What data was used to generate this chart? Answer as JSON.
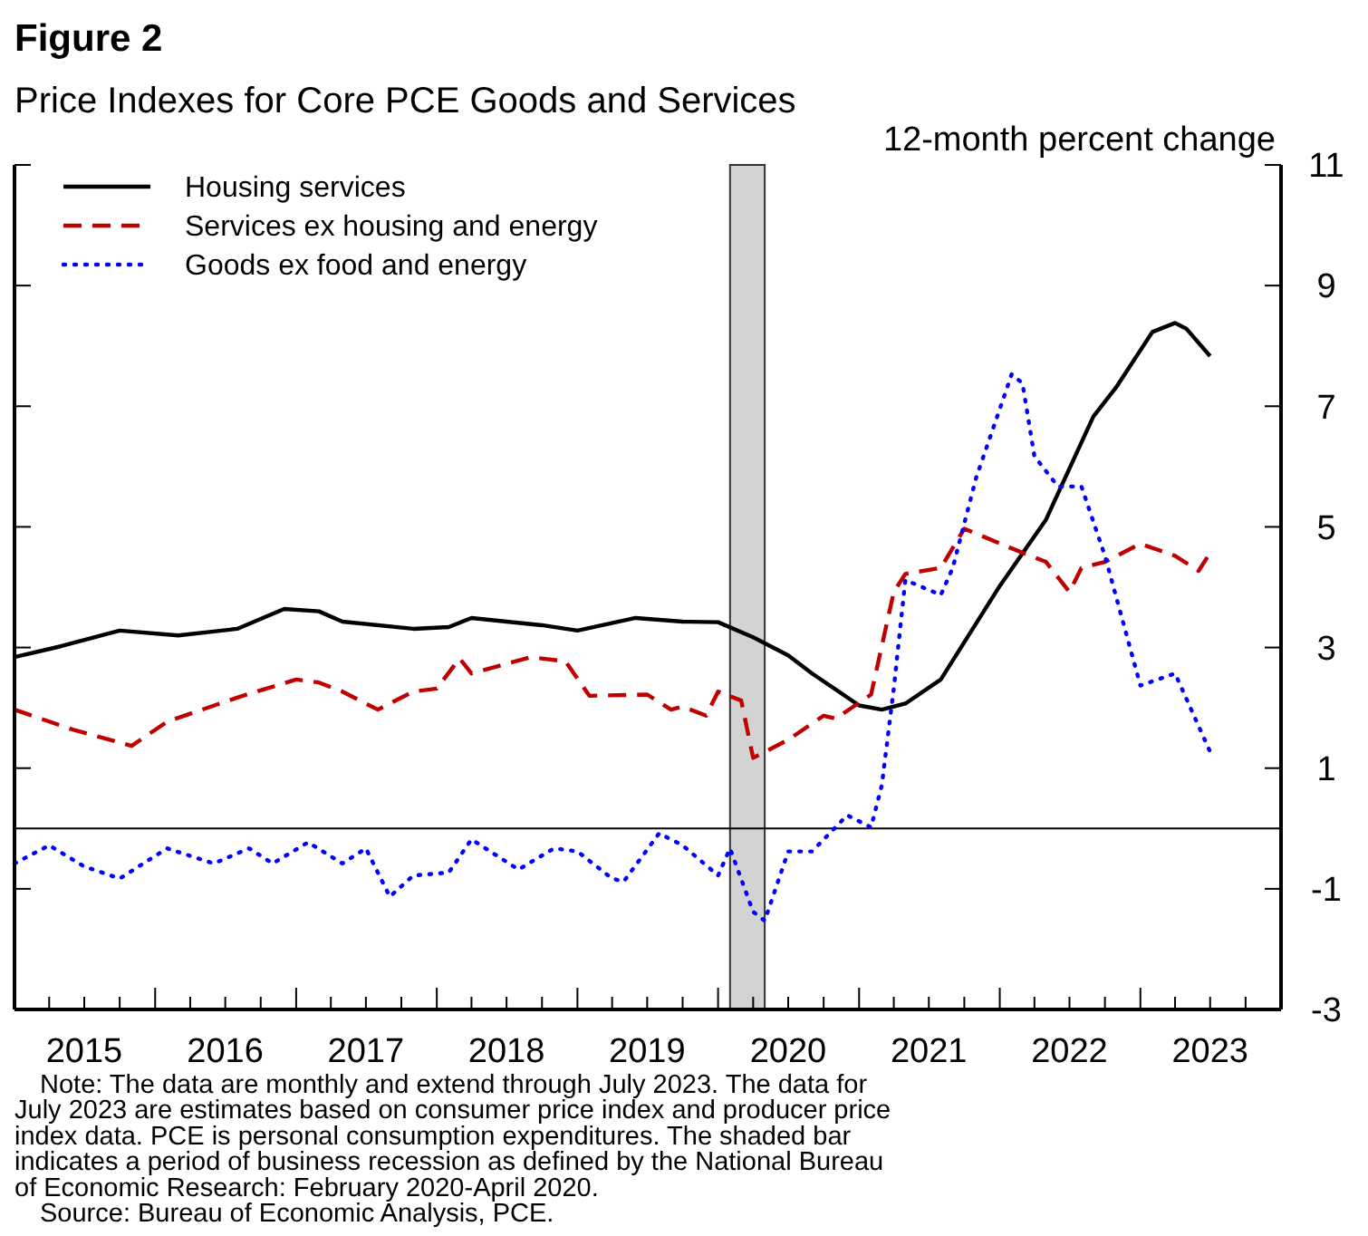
{
  "chart_data": {
    "type": "line",
    "title": "Figure 2",
    "subtitle": "Price Indexes for Core PCE Goods and Services",
    "ylabel": "12-month percent change",
    "xlim": [
      "2015-01",
      "2024-01"
    ],
    "ylim": [
      -3,
      11
    ],
    "yticks": [
      -3,
      -1,
      1,
      3,
      5,
      7,
      9,
      11
    ],
    "xticks": [
      {
        "value": "2015-01",
        "label": null
      },
      {
        "value": "2015-04",
        "label": null
      },
      {
        "value": "2015-07",
        "label": "2015"
      },
      {
        "value": "2015-10",
        "label": null
      },
      {
        "value": "2016-01",
        "label": null
      },
      {
        "value": "2016-04",
        "label": null
      },
      {
        "value": "2016-07",
        "label": "2016"
      },
      {
        "value": "2016-10",
        "label": null
      },
      {
        "value": "2017-01",
        "label": null
      },
      {
        "value": "2017-04",
        "label": null
      },
      {
        "value": "2017-07",
        "label": "2017"
      },
      {
        "value": "2017-10",
        "label": null
      },
      {
        "value": "2018-01",
        "label": null
      },
      {
        "value": "2018-04",
        "label": null
      },
      {
        "value": "2018-07",
        "label": "2018"
      },
      {
        "value": "2018-10",
        "label": null
      },
      {
        "value": "2019-01",
        "label": null
      },
      {
        "value": "2019-04",
        "label": null
      },
      {
        "value": "2019-07",
        "label": "2019"
      },
      {
        "value": "2019-10",
        "label": null
      },
      {
        "value": "2020-01",
        "label": null
      },
      {
        "value": "2020-04",
        "label": null
      },
      {
        "value": "2020-07",
        "label": "2020"
      },
      {
        "value": "2020-10",
        "label": null
      },
      {
        "value": "2021-01",
        "label": null
      },
      {
        "value": "2021-04",
        "label": null
      },
      {
        "value": "2021-07",
        "label": "2021"
      },
      {
        "value": "2021-10",
        "label": null
      },
      {
        "value": "2022-01",
        "label": null
      },
      {
        "value": "2022-04",
        "label": null
      },
      {
        "value": "2022-07",
        "label": "2022"
      },
      {
        "value": "2022-10",
        "label": null
      },
      {
        "value": "2023-01",
        "label": null
      },
      {
        "value": "2023-04",
        "label": null
      },
      {
        "value": "2023-07",
        "label": "2023"
      },
      {
        "value": "2023-10",
        "label": null
      },
      {
        "value": "2024-01",
        "label": null
      }
    ],
    "grid": false,
    "legend": "top left",
    "bands": [
      {
        "axis": "x",
        "from": "2020-02",
        "to": "2020-05",
        "color": "#d3d3d3"
      }
    ],
    "ref_lines": [
      {
        "axis": "y",
        "value": 0,
        "color": "#000000"
      }
    ],
    "series": [
      {
        "name": "Housing services",
        "color": "#000000",
        "line_style": "solid",
        "x": [
          "2015-01",
          "2015-05",
          "2015-10",
          "2016-03",
          "2016-08",
          "2016-12",
          "2017-03",
          "2017-05",
          "2017-11",
          "2018-02",
          "2018-04",
          "2018-10",
          "2019-01",
          "2019-06",
          "2019-10",
          "2020-01",
          "2020-04",
          "2020-07",
          "2020-09",
          "2021-01",
          "2021-03",
          "2021-05",
          "2021-08",
          "2022-01",
          "2022-05",
          "2022-09",
          "2022-11",
          "2023-02",
          "2023-04",
          "2023-05",
          "2023-07"
        ],
        "values": [
          2.84,
          3.02,
          3.28,
          3.2,
          3.31,
          3.64,
          3.6,
          3.43,
          3.31,
          3.34,
          3.49,
          3.37,
          3.28,
          3.49,
          3.43,
          3.42,
          3.17,
          2.87,
          2.57,
          2.04,
          1.97,
          2.07,
          2.47,
          4.02,
          5.12,
          6.83,
          7.33,
          8.23,
          8.38,
          8.28,
          7.83
        ]
      },
      {
        "name": "Services ex housing and energy",
        "color": "#c00000",
        "line_style": "dashed",
        "x": [
          "2015-01",
          "2015-06",
          "2015-11",
          "2016-02",
          "2016-08",
          "2017-01",
          "2017-03",
          "2017-05",
          "2017-08",
          "2017-11",
          "2018-01",
          "2018-03",
          "2018-04",
          "2018-09",
          "2018-12",
          "2019-02",
          "2019-07",
          "2019-09",
          "2019-10",
          "2019-12",
          "2020-01",
          "2020-03",
          "2020-04",
          "2020-07",
          "2020-10",
          "2020-11",
          "2021-02",
          "2021-04",
          "2021-05",
          "2021-08",
          "2021-10",
          "2022-03",
          "2022-05",
          "2022-07",
          "2022-08",
          "2022-10",
          "2023-01",
          "2023-04",
          "2023-06",
          "2023-07"
        ],
        "values": [
          1.97,
          1.64,
          1.37,
          1.77,
          2.17,
          2.47,
          2.42,
          2.27,
          1.97,
          2.27,
          2.32,
          2.82,
          2.57,
          2.84,
          2.77,
          2.2,
          2.22,
          1.97,
          2.02,
          1.87,
          2.27,
          2.12,
          1.17,
          1.47,
          1.87,
          1.82,
          2.22,
          3.92,
          4.22,
          4.32,
          4.97,
          4.57,
          4.42,
          3.92,
          4.32,
          4.42,
          4.72,
          4.52,
          4.27,
          4.57
        ]
      },
      {
        "name": "Goods ex food and energy",
        "color": "#0000ff",
        "line_style": "dotted",
        "x": [
          "2015-01",
          "2015-04",
          "2015-07",
          "2015-10",
          "2016-02",
          "2016-06",
          "2016-09",
          "2016-11",
          "2017-02",
          "2017-05",
          "2017-07",
          "2017-09",
          "2017-11",
          "2018-02",
          "2018-04",
          "2018-08",
          "2018-11",
          "2019-01",
          "2019-04",
          "2019-05",
          "2019-08",
          "2019-10",
          "2020-01",
          "2020-02",
          "2020-04",
          "2020-05",
          "2020-07",
          "2020-09",
          "2020-12",
          "2021-02",
          "2021-03",
          "2021-04",
          "2021-05",
          "2021-08",
          "2021-09",
          "2021-11",
          "2022-02",
          "2022-03",
          "2022-04",
          "2022-06",
          "2022-08",
          "2022-10",
          "2023-01",
          "2023-04",
          "2023-07"
        ],
        "values": [
          -0.58,
          -0.28,
          -0.63,
          -0.83,
          -0.33,
          -0.58,
          -0.33,
          -0.58,
          -0.23,
          -0.58,
          -0.33,
          -1.13,
          -0.78,
          -0.73,
          -0.18,
          -0.68,
          -0.33,
          -0.38,
          -0.83,
          -0.88,
          -0.08,
          -0.28,
          -0.78,
          -0.33,
          -1.38,
          -1.53,
          -0.38,
          -0.38,
          0.22,
          0.02,
          0.72,
          2.32,
          4.12,
          3.87,
          4.32,
          5.82,
          7.53,
          7.38,
          6.17,
          5.67,
          5.67,
          4.52,
          2.37,
          2.57,
          1.27
        ]
      }
    ],
    "annotations": [
      "Note: The data are monthly and extend through July 2023. The data for",
      "July 2023 are estimates based on consumer price index and producer price",
      "index data. PCE is personal consumption expenditures. The shaded bar",
      "indicates a period of business recession as defined by the National Bureau",
      "of Economic Research: February 2020-April 2020.",
      "Source: Bureau of Economic Analysis, PCE."
    ]
  }
}
